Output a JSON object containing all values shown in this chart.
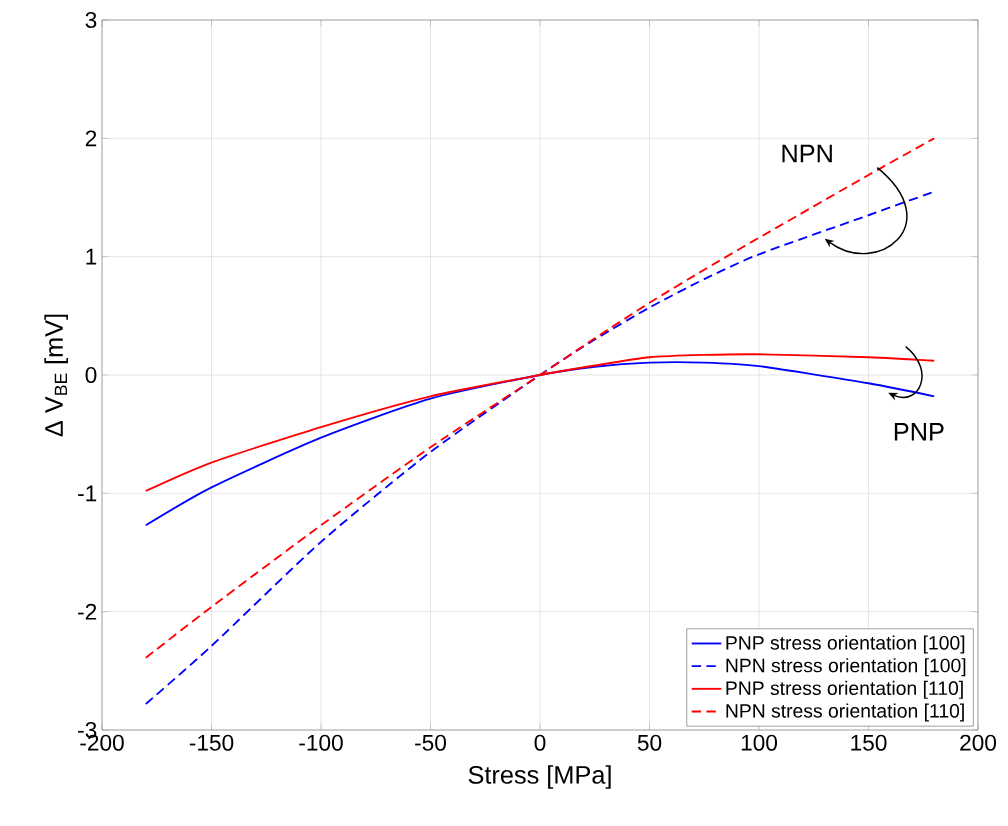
{
  "chart_data": {
    "type": "line",
    "xlabel": "Stress  [MPa]",
    "ylabel": "Δ V$_{BE}$ [mV]",
    "xlim": [
      -200,
      200
    ],
    "ylim": [
      -3,
      3
    ],
    "xticks": [
      -200,
      -150,
      -100,
      -50,
      0,
      50,
      100,
      150,
      200
    ],
    "yticks": [
      -3,
      -2,
      -1,
      0,
      1,
      2,
      3
    ],
    "grid": true,
    "legend": "bottom right",
    "marker": "none",
    "x": [
      -180,
      -150,
      -100,
      -50,
      0,
      25,
      50,
      75,
      100,
      150,
      180
    ],
    "series": [
      {
        "name": "PNP stress orientation [100]",
        "color": "#0000ff",
        "line_style": "solid",
        "values": [
          -1.27,
          -0.95,
          -0.53,
          -0.2,
          0,
          0.07,
          0.105,
          0.105,
          0.075,
          -0.07,
          -0.18
        ]
      },
      {
        "name": "NPN stress orientation [100]",
        "color": "#0000ff",
        "line_style": "dashed",
        "values": [
          -2.78,
          -2.29,
          -1.41,
          -0.65,
          0,
          0.3,
          0.57,
          0.81,
          1.02,
          1.35,
          1.55
        ]
      },
      {
        "name": "PNP stress orientation [110]",
        "color": "#ff0000",
        "line_style": "solid",
        "values": [
          -0.98,
          -0.74,
          -0.44,
          -0.18,
          0,
          0.08,
          0.15,
          0.17,
          0.175,
          0.15,
          0.12
        ]
      },
      {
        "name": "NPN stress orientation [110]",
        "color": "#ff0000",
        "line_style": "dashed",
        "values": [
          -2.39,
          -1.96,
          -1.27,
          -0.61,
          0,
          0.31,
          0.61,
          0.89,
          1.16,
          1.69,
          2.0
        ]
      }
    ],
    "annotations": [
      "NPN",
      "PNP"
    ]
  }
}
